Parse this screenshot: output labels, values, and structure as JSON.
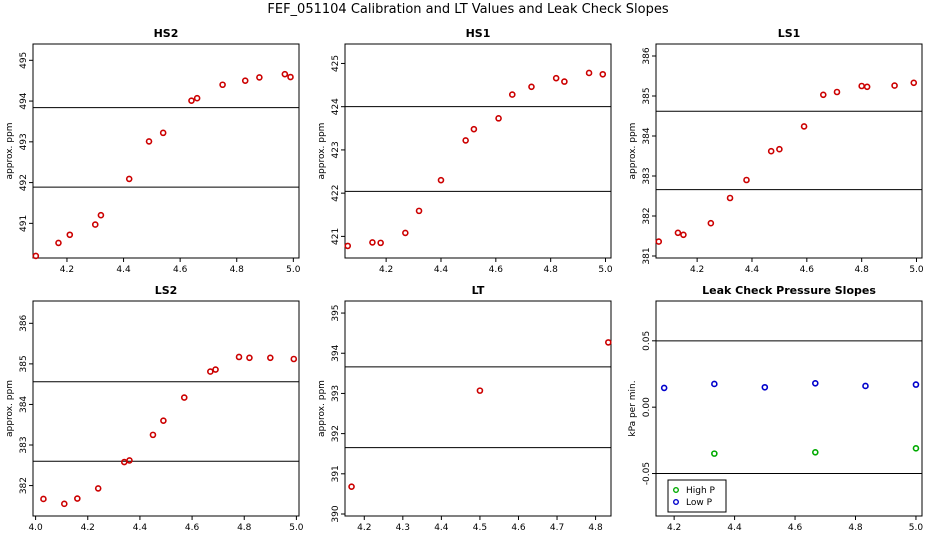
{
  "title": "FEF_051104  Calibration and LT Values and Leak Check Slopes",
  "chart_data": [
    {
      "type": "scatter",
      "title": "HS2",
      "ylabel": "approx. ppm",
      "xlim": [
        4.08,
        5.02
      ],
      "ylim": [
        490.15,
        495.4
      ],
      "xticks": [
        4.2,
        4.4,
        4.6,
        4.8,
        5.0
      ],
      "xtick_labels": [
        "4.2",
        "4.4",
        "4.6",
        "4.8",
        "5.0"
      ],
      "yticks": [
        491,
        492,
        493,
        494,
        495
      ],
      "ytick_labels": [
        "491",
        "492",
        "493",
        "494",
        "495"
      ],
      "hlines": [
        491.89,
        493.84
      ],
      "series": [
        {
          "color": "#cc0000",
          "marker": "circle",
          "points": [
            [
              4.09,
              490.2
            ],
            [
              4.17,
              490.52
            ],
            [
              4.21,
              490.72
            ],
            [
              4.3,
              490.97
            ],
            [
              4.32,
              491.2
            ],
            [
              4.42,
              492.09
            ],
            [
              4.49,
              493.01
            ],
            [
              4.54,
              493.22
            ],
            [
              4.64,
              494.01
            ],
            [
              4.66,
              494.07
            ],
            [
              4.75,
              494.4
            ],
            [
              4.83,
              494.5
            ],
            [
              4.88,
              494.58
            ],
            [
              4.97,
              494.66
            ],
            [
              4.99,
              494.59
            ]
          ]
        }
      ]
    },
    {
      "type": "scatter",
      "title": "HS1",
      "ylabel": "approx. ppm",
      "xlim": [
        4.05,
        5.02
      ],
      "ylim": [
        420.5,
        425.45
      ],
      "xticks": [
        4.2,
        4.4,
        4.6,
        4.8,
        5.0
      ],
      "xtick_labels": [
        "4.2",
        "4.4",
        "4.6",
        "4.8",
        "5.0"
      ],
      "yticks": [
        421,
        422,
        423,
        424,
        425
      ],
      "ytick_labels": [
        "421",
        "422",
        "423",
        "424",
        "425"
      ],
      "hlines": [
        422.04,
        424.0
      ],
      "series": [
        {
          "color": "#cc0000",
          "marker": "circle",
          "points": [
            [
              4.06,
              420.78
            ],
            [
              4.15,
              420.86
            ],
            [
              4.18,
              420.85
            ],
            [
              4.27,
              421.08
            ],
            [
              4.32,
              421.59
            ],
            [
              4.4,
              422.3
            ],
            [
              4.49,
              423.22
            ],
            [
              4.52,
              423.48
            ],
            [
              4.61,
              423.73
            ],
            [
              4.66,
              424.28
            ],
            [
              4.73,
              424.46
            ],
            [
              4.82,
              424.66
            ],
            [
              4.85,
              424.58
            ],
            [
              4.94,
              424.78
            ],
            [
              4.99,
              424.75
            ]
          ]
        }
      ]
    },
    {
      "type": "scatter",
      "title": "LS1",
      "ylabel": "approx. ppm",
      "xlim": [
        4.05,
        5.02
      ],
      "ylim": [
        380.95,
        386.3
      ],
      "xticks": [
        4.2,
        4.4,
        4.6,
        4.8,
        5.0
      ],
      "xtick_labels": [
        "4.2",
        "4.4",
        "4.6",
        "4.8",
        "5.0"
      ],
      "yticks": [
        381,
        382,
        383,
        384,
        385,
        386
      ],
      "ytick_labels": [
        "381",
        "382",
        "383",
        "384",
        "385",
        "386"
      ],
      "hlines": [
        382.66,
        384.62
      ],
      "series": [
        {
          "color": "#cc0000",
          "marker": "circle",
          "points": [
            [
              4.06,
              381.36
            ],
            [
              4.13,
              381.58
            ],
            [
              4.15,
              381.53
            ],
            [
              4.25,
              381.82
            ],
            [
              4.32,
              382.45
            ],
            [
              4.38,
              382.9
            ],
            [
              4.47,
              383.62
            ],
            [
              4.5,
              383.67
            ],
            [
              4.59,
              384.24
            ],
            [
              4.66,
              385.03
            ],
            [
              4.71,
              385.1
            ],
            [
              4.8,
              385.25
            ],
            [
              4.82,
              385.23
            ],
            [
              4.92,
              385.26
            ],
            [
              4.99,
              385.33
            ]
          ]
        }
      ]
    },
    {
      "type": "scatter",
      "title": "LS2",
      "ylabel": "approx. ppm",
      "xlim": [
        3.99,
        5.01
      ],
      "ylim": [
        381.25,
        386.55
      ],
      "xticks": [
        4.0,
        4.2,
        4.4,
        4.6,
        4.8,
        5.0
      ],
      "xtick_labels": [
        "4.0",
        "4.2",
        "4.4",
        "4.6",
        "4.8",
        "5.0"
      ],
      "yticks": [
        382,
        383,
        384,
        385,
        386
      ],
      "ytick_labels": [
        "382",
        "383",
        "384",
        "385",
        "386"
      ],
      "hlines": [
        382.6,
        384.56
      ],
      "series": [
        {
          "color": "#cc0000",
          "marker": "circle",
          "points": [
            [
              4.03,
              381.67
            ],
            [
              4.11,
              381.55
            ],
            [
              4.16,
              381.68
            ],
            [
              4.24,
              381.93
            ],
            [
              4.34,
              382.58
            ],
            [
              4.36,
              382.62
            ],
            [
              4.45,
              383.25
            ],
            [
              4.49,
              383.6
            ],
            [
              4.57,
              384.17
            ],
            [
              4.67,
              384.81
            ],
            [
              4.69,
              384.86
            ],
            [
              4.78,
              385.17
            ],
            [
              4.82,
              385.15
            ],
            [
              4.9,
              385.15
            ],
            [
              4.99,
              385.12
            ]
          ]
        }
      ]
    },
    {
      "type": "scatter",
      "title": "LT",
      "ylabel": "approx. ppm",
      "xlim": [
        4.15,
        4.84
      ],
      "ylim": [
        389.95,
        395.3
      ],
      "xticks": [
        4.2,
        4.3,
        4.4,
        4.5,
        4.6,
        4.7,
        4.8
      ],
      "xtick_labels": [
        "4.2",
        "4.3",
        "4.4",
        "4.5",
        "4.6",
        "4.7",
        "4.8"
      ],
      "yticks": [
        390,
        391,
        392,
        393,
        394,
        395
      ],
      "ytick_labels": [
        "390",
        "391",
        "392",
        "393",
        "394",
        "395"
      ],
      "hlines": [
        391.65,
        393.66
      ],
      "series": [
        {
          "color": "#cc0000",
          "marker": "circle",
          "points": [
            [
              4.167,
              390.68
            ],
            [
              4.5,
              393.07
            ],
            [
              4.833,
              394.27
            ]
          ]
        }
      ]
    },
    {
      "type": "scatter",
      "title": "Leak Check Pressure Slopes",
      "ylabel": "kPa per min.",
      "xlim": [
        4.14,
        5.02
      ],
      "ylim": [
        -0.082,
        0.08
      ],
      "xticks": [
        4.2,
        4.4,
        4.6,
        4.8,
        5.0
      ],
      "xtick_labels": [
        "4.2",
        "4.4",
        "4.6",
        "4.8",
        "5.0"
      ],
      "yticks": [
        -0.05,
        0.0,
        0.05
      ],
      "ytick_labels": [
        "-0.05",
        "0.00",
        "0.05"
      ],
      "hlines": [
        -0.05,
        0.05
      ],
      "legend": {
        "position": "bottom-left",
        "entries": [
          {
            "label": "High P",
            "color": "#00aa00"
          },
          {
            "label": "Low P",
            "color": "#0000cc"
          }
        ]
      },
      "series": [
        {
          "name": "High P",
          "color": "#00aa00",
          "marker": "circle",
          "points": [
            [
              4.333,
              -0.035
            ],
            [
              4.667,
              -0.034
            ],
            [
              5.0,
              -0.031
            ]
          ]
        },
        {
          "name": "Low P",
          "color": "#0000cc",
          "marker": "circle",
          "points": [
            [
              4.167,
              0.0145
            ],
            [
              4.333,
              0.0175
            ],
            [
              4.5,
              0.015
            ],
            [
              4.667,
              0.018
            ],
            [
              4.833,
              0.016
            ],
            [
              5.0,
              0.017
            ]
          ]
        }
      ]
    }
  ]
}
